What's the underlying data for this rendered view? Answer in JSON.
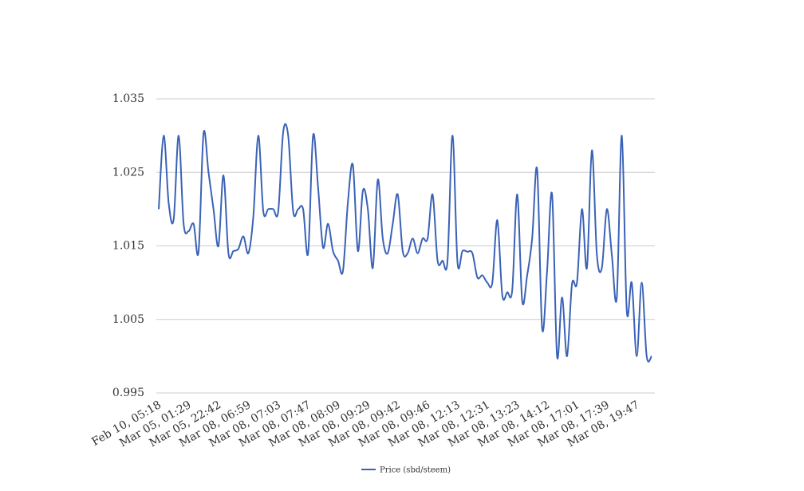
{
  "chart_data": {
    "type": "line",
    "categories": [
      "Feb 10, 05:18",
      null,
      null,
      null,
      null,
      null,
      "Mar 05, 01:29",
      null,
      null,
      null,
      null,
      null,
      "Mar 05, 22:42",
      null,
      null,
      null,
      null,
      null,
      "Mar 08, 06:59",
      null,
      null,
      null,
      null,
      null,
      "Mar 08, 07:03",
      null,
      null,
      null,
      null,
      null,
      "Mar 08, 07:47",
      null,
      null,
      null,
      null,
      null,
      "Mar 08, 08:09",
      null,
      null,
      null,
      null,
      null,
      "Mar 08, 09:29",
      null,
      null,
      null,
      null,
      null,
      "Mar 08, 09:42",
      null,
      null,
      null,
      null,
      null,
      "Mar 08, 09:46",
      null,
      null,
      null,
      null,
      null,
      "Mar 08, 12:13",
      null,
      null,
      null,
      null,
      null,
      "Mar 08, 12:31",
      null,
      null,
      null,
      null,
      null,
      "Mar 08, 13:23",
      null,
      null,
      null,
      null,
      null,
      "Mar 08, 14:12",
      null,
      null,
      null,
      null,
      null,
      "Mar 08, 17:01",
      null,
      null,
      null,
      null,
      null,
      "Mar 08, 17:39",
      null,
      null,
      null,
      null,
      null,
      "Mar 08, 19:47",
      null,
      null,
      null
    ],
    "series": [
      {
        "name": "Price (sbd/steem)",
        "color": "#3a62b6",
        "values": [
          1.02,
          1.03,
          1.0208,
          1.0186,
          1.03,
          1.018,
          1.017,
          1.018,
          1.0142,
          1.0303,
          1.025,
          1.02,
          1.015,
          1.0246,
          1.014,
          1.0143,
          1.0146,
          1.0163,
          1.014,
          1.019,
          1.03,
          1.0197,
          1.02,
          1.02,
          1.0197,
          1.0305,
          1.03,
          1.0197,
          1.02,
          1.02,
          1.014,
          1.03,
          1.023,
          1.0148,
          1.018,
          1.0143,
          1.013,
          1.0116,
          1.021,
          1.026,
          1.0143,
          1.0225,
          1.02,
          1.012,
          1.024,
          1.016,
          1.014,
          1.018,
          1.022,
          1.0143,
          1.014,
          1.016,
          1.014,
          1.016,
          1.016,
          1.022,
          1.013,
          1.013,
          1.013,
          1.03,
          1.0128,
          1.0143,
          1.0142,
          1.014,
          1.0107,
          1.011,
          1.01,
          1.01,
          1.0185,
          1.0083,
          1.0087,
          1.009,
          1.022,
          1.0075,
          1.011,
          1.016,
          1.0254,
          1.0038,
          1.0116,
          1.022,
          1.0,
          1.008,
          1.0,
          1.0098,
          1.01,
          1.02,
          1.012,
          1.028,
          1.0138,
          1.012,
          1.02,
          1.0138,
          1.008,
          1.03,
          1.0062,
          1.01,
          1.0,
          1.01,
          1.0,
          1.0
        ]
      }
    ],
    "ylim": [
      0.995,
      1.035
    ],
    "yticks": [
      {
        "value": 0.995,
        "label": "0.995"
      },
      {
        "value": 1.005,
        "label": "1.005"
      },
      {
        "value": 1.015,
        "label": "1.015"
      },
      {
        "value": 1.025,
        "label": "1.025"
      },
      {
        "value": 1.035,
        "label": "1.035"
      }
    ],
    "grid": true,
    "legend": "bottom"
  }
}
